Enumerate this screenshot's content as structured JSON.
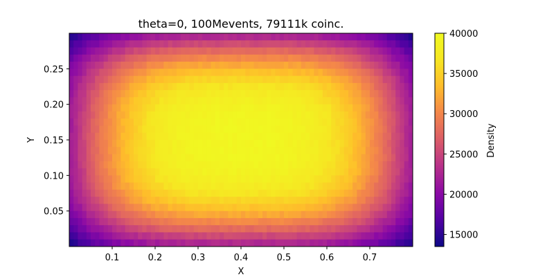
{
  "chart_data": {
    "type": "heatmap",
    "title": "theta=0, 100Mevents, 79111k coinc.",
    "xlabel": "X",
    "ylabel": "Y",
    "xlim": [
      0.0,
      0.8
    ],
    "ylim": [
      0.0,
      0.3
    ],
    "x_ticks": [
      "0.1",
      "0.2",
      "0.3",
      "0.4",
      "0.5",
      "0.6",
      "0.7"
    ],
    "x_tick_values": [
      0.1,
      0.2,
      0.3,
      0.4,
      0.5,
      0.6,
      0.7
    ],
    "y_ticks": [
      "0.05",
      "0.10",
      "0.15",
      "0.20",
      "0.25"
    ],
    "y_tick_values": [
      0.05,
      0.1,
      0.15,
      0.2,
      0.25
    ],
    "colormap": "plasma",
    "colorbar": {
      "label": "Density",
      "vmin": 13500,
      "vmax": 40000,
      "ticks": [
        "15000",
        "20000",
        "25000",
        "30000",
        "35000",
        "40000"
      ],
      "tick_values": [
        15000,
        20000,
        25000,
        30000,
        35000,
        40000
      ]
    },
    "grid": {
      "nx": 80,
      "ny": 30,
      "corner_value": 13500,
      "edge_value_x": 21500,
      "edge_value_y": 23000,
      "center_value": 39500
    }
  }
}
